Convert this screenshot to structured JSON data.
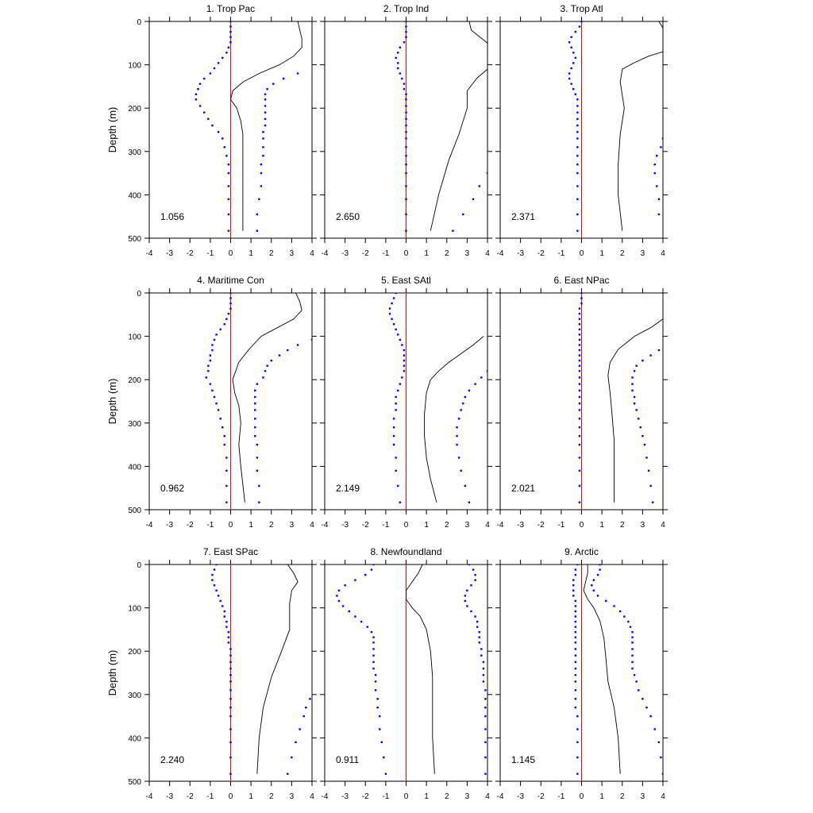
{
  "chart_data": {
    "type": "line",
    "x_range": [
      -4,
      4
    ],
    "y_range": [
      0,
      500
    ],
    "y_reversed": true,
    "ylabel": "Depth (m)",
    "x_ticks": [
      "-4",
      "-3",
      "-2",
      "-1",
      "0",
      "1",
      "2",
      "3",
      "4"
    ],
    "y_ticks": [
      "0",
      "100",
      "200",
      "300",
      "400",
      "500"
    ],
    "zero_line_color": "#ff0000",
    "solid_line_color": "#000000",
    "dot_color": "#0000ff",
    "depths": [
      0,
      12,
      24,
      36,
      48,
      60,
      72,
      84,
      96,
      108,
      120,
      132,
      144,
      156,
      168,
      180,
      195,
      210,
      225,
      240,
      255,
      270,
      290,
      310,
      330,
      350,
      380,
      410,
      445,
      483
    ],
    "panels": [
      {
        "title": "1. Trop Pac",
        "value_label": "1.056",
        "solid": [
          [
            3.3,
            0
          ],
          [
            3.4,
            20
          ],
          [
            3.5,
            40
          ],
          [
            3.5,
            60
          ],
          [
            3.1,
            80
          ],
          [
            2.4,
            100
          ],
          [
            1.4,
            120
          ],
          [
            0.6,
            140
          ],
          [
            0.1,
            160
          ],
          [
            0.0,
            180
          ],
          [
            0.3,
            200
          ],
          [
            0.5,
            230
          ],
          [
            0.6,
            260
          ],
          [
            0.6,
            300
          ],
          [
            0.6,
            350
          ],
          [
            0.6,
            400
          ],
          [
            0.6,
            483
          ]
        ],
        "dots_left": [
          0.0,
          0.0,
          0.0,
          0.0,
          0.0,
          -0.1,
          -0.2,
          -0.4,
          -0.6,
          -0.8,
          -1.0,
          -1.3,
          -1.5,
          -1.6,
          -1.7,
          -1.7,
          -1.5,
          -1.3,
          -1.1,
          -0.9,
          -0.6,
          -0.4,
          -0.3,
          -0.2,
          -0.1,
          -0.1,
          -0.1,
          -0.1,
          -0.1,
          -0.1
        ],
        "dots_right": [
          null,
          null,
          null,
          null,
          null,
          null,
          null,
          null,
          null,
          null,
          3.3,
          2.6,
          2.1,
          1.8,
          1.7,
          1.7,
          1.7,
          1.7,
          1.7,
          1.7,
          1.6,
          1.6,
          1.6,
          1.6,
          1.5,
          1.5,
          1.5,
          1.4,
          1.3,
          1.3
        ]
      },
      {
        "title": "2. Trop Ind",
        "value_label": "2.650",
        "solid": [
          [
            3.1,
            0
          ],
          [
            3.2,
            20
          ],
          [
            3.6,
            35
          ],
          [
            4.0,
            50
          ],
          [
            4.0,
            110
          ],
          [
            3.5,
            130
          ],
          [
            3.0,
            160
          ],
          [
            3.0,
            200
          ],
          [
            2.6,
            260
          ],
          [
            2.1,
            320
          ],
          [
            1.6,
            400
          ],
          [
            1.2,
            483
          ]
        ],
        "dots_left": [
          0.0,
          0.0,
          0.0,
          0.0,
          -0.1,
          -0.3,
          -0.4,
          -0.5,
          -0.4,
          -0.4,
          -0.3,
          -0.2,
          -0.1,
          -0.1,
          0.0,
          0.0,
          0.0,
          0.0,
          0.0,
          0.0,
          0.0,
          0.0,
          0.0,
          0.0,
          0.0,
          0.0,
          0.0,
          0.0,
          0.0,
          0.0
        ],
        "dots_right": [
          null,
          null,
          null,
          null,
          null,
          null,
          null,
          null,
          null,
          null,
          null,
          null,
          null,
          null,
          null,
          null,
          null,
          null,
          null,
          null,
          null,
          null,
          null,
          null,
          null,
          4.0,
          3.6,
          3.3,
          2.8,
          2.3
        ]
      },
      {
        "title": "3. Trop Atl",
        "value_label": "2.371",
        "solid": [
          [
            3.8,
            0
          ],
          [
            4.0,
            15
          ],
          [
            4.0,
            70
          ],
          [
            3.3,
            80
          ],
          [
            2.6,
            95
          ],
          [
            2.0,
            110
          ],
          [
            1.9,
            140
          ],
          [
            2.1,
            200
          ],
          [
            1.9,
            260
          ],
          [
            1.8,
            330
          ],
          [
            1.8,
            400
          ],
          [
            2.0,
            483
          ]
        ],
        "dots_left": [
          0.0,
          -0.1,
          -0.3,
          -0.5,
          -0.6,
          -0.5,
          -0.4,
          -0.3,
          -0.4,
          -0.5,
          -0.6,
          -0.6,
          -0.5,
          -0.4,
          -0.3,
          -0.2,
          -0.2,
          -0.2,
          -0.2,
          -0.2,
          -0.2,
          -0.2,
          -0.2,
          -0.2,
          -0.2,
          -0.2,
          -0.2,
          -0.2,
          -0.2,
          -0.2
        ],
        "dots_right": [
          null,
          null,
          null,
          null,
          null,
          null,
          null,
          null,
          null,
          null,
          null,
          null,
          null,
          null,
          null,
          null,
          null,
          null,
          null,
          null,
          null,
          4.0,
          3.9,
          3.7,
          3.6,
          3.6,
          3.7,
          3.8,
          3.8,
          null
        ]
      },
      {
        "title": "4. Maritime Con",
        "value_label": "0.962",
        "solid": [
          [
            3.2,
            0
          ],
          [
            3.4,
            20
          ],
          [
            3.5,
            40
          ],
          [
            3.1,
            60
          ],
          [
            2.3,
            80
          ],
          [
            1.5,
            100
          ],
          [
            0.9,
            130
          ],
          [
            0.4,
            160
          ],
          [
            0.1,
            200
          ],
          [
            0.2,
            230
          ],
          [
            0.4,
            260
          ],
          [
            0.5,
            300
          ],
          [
            0.4,
            350
          ],
          [
            0.5,
            400
          ],
          [
            0.7,
            483
          ]
        ],
        "dots_left": [
          0.0,
          0.0,
          0.0,
          0.0,
          -0.1,
          -0.2,
          -0.3,
          -0.5,
          -0.7,
          -0.8,
          -0.9,
          -0.9,
          -1.0,
          -1.0,
          -1.1,
          -1.1,
          -1.2,
          -1.0,
          -0.9,
          -0.8,
          -0.7,
          -0.6,
          -0.5,
          -0.4,
          -0.3,
          -0.3,
          -0.2,
          -0.2,
          -0.2,
          -0.2
        ],
        "dots_right": [
          null,
          null,
          null,
          null,
          null,
          null,
          null,
          null,
          null,
          4.0,
          3.3,
          2.8,
          2.4,
          2.0,
          1.8,
          1.7,
          1.6,
          1.3,
          1.2,
          1.2,
          1.2,
          1.2,
          1.2,
          1.2,
          1.2,
          1.3,
          1.3,
          1.3,
          1.4,
          1.4
        ]
      },
      {
        "title": "5. East SAtl",
        "value_label": "2.149",
        "solid": [
          [
            3.8,
            100
          ],
          [
            3.3,
            120
          ],
          [
            2.7,
            140
          ],
          [
            2.1,
            160
          ],
          [
            1.6,
            180
          ],
          [
            1.2,
            200
          ],
          [
            1.0,
            230
          ],
          [
            0.9,
            280
          ],
          [
            0.9,
            330
          ],
          [
            1.0,
            380
          ],
          [
            1.2,
            430
          ],
          [
            1.5,
            483
          ]
        ],
        "dots_left": [
          -0.5,
          -0.6,
          -0.7,
          -0.8,
          -0.8,
          -0.7,
          -0.6,
          -0.5,
          -0.4,
          -0.3,
          -0.2,
          -0.1,
          -0.1,
          -0.1,
          -0.1,
          -0.1,
          -0.2,
          -0.3,
          -0.4,
          -0.5,
          -0.5,
          -0.5,
          -0.6,
          -0.6,
          -0.6,
          -0.6,
          -0.5,
          -0.5,
          -0.4,
          -0.3
        ],
        "dots_right": [
          null,
          null,
          null,
          null,
          null,
          null,
          null,
          null,
          null,
          null,
          null,
          null,
          null,
          null,
          null,
          4.0,
          3.7,
          3.4,
          3.1,
          2.9,
          2.8,
          2.7,
          2.6,
          2.5,
          2.5,
          2.5,
          2.6,
          2.7,
          2.9,
          3.1
        ]
      },
      {
        "title": "6. East NPac",
        "value_label": "2.021",
        "solid": [
          [
            4.0,
            60
          ],
          [
            3.4,
            80
          ],
          [
            2.6,
            100
          ],
          [
            1.8,
            130
          ],
          [
            1.4,
            160
          ],
          [
            1.3,
            190
          ],
          [
            1.4,
            230
          ],
          [
            1.5,
            280
          ],
          [
            1.6,
            340
          ],
          [
            1.6,
            400
          ],
          [
            1.6,
            483
          ]
        ],
        "dots_left": [
          0.0,
          0.0,
          0.0,
          -0.1,
          -0.1,
          -0.1,
          -0.1,
          -0.1,
          -0.1,
          -0.1,
          -0.1,
          -0.1,
          -0.1,
          -0.1,
          -0.1,
          -0.1,
          -0.1,
          -0.1,
          -0.1,
          -0.1,
          -0.1,
          -0.1,
          -0.1,
          -0.1,
          -0.1,
          -0.1,
          -0.1,
          -0.1,
          -0.1,
          -0.1
        ],
        "dots_right": [
          null,
          null,
          null,
          null,
          null,
          null,
          null,
          null,
          null,
          null,
          null,
          3.8,
          3.4,
          3.0,
          2.7,
          2.6,
          2.5,
          2.5,
          2.5,
          2.6,
          2.6,
          2.7,
          2.8,
          2.9,
          3.0,
          3.1,
          3.2,
          3.3,
          3.4,
          3.5
        ]
      },
      {
        "title": "7. East SPac",
        "value_label": "2.240",
        "solid": [
          [
            2.8,
            0
          ],
          [
            3.1,
            20
          ],
          [
            3.3,
            40
          ],
          [
            3.0,
            60
          ],
          [
            2.9,
            90
          ],
          [
            2.9,
            150
          ],
          [
            2.5,
            200
          ],
          [
            2.0,
            260
          ],
          [
            1.6,
            330
          ],
          [
            1.4,
            400
          ],
          [
            1.3,
            483
          ]
        ],
        "dots_left": [
          -0.7,
          -0.8,
          -0.9,
          -0.9,
          -0.8,
          -0.7,
          -0.6,
          -0.5,
          -0.4,
          -0.3,
          -0.3,
          -0.2,
          -0.2,
          -0.1,
          -0.1,
          -0.1,
          0.0,
          0.0,
          0.0,
          0.0,
          0.0,
          0.0,
          0.0,
          0.0,
          0.0,
          0.0,
          0.0,
          0.0,
          0.0,
          0.0
        ],
        "dots_right": [
          null,
          null,
          null,
          null,
          null,
          null,
          null,
          null,
          null,
          null,
          null,
          null,
          null,
          null,
          null,
          null,
          null,
          null,
          null,
          null,
          null,
          null,
          null,
          3.9,
          3.7,
          3.6,
          3.4,
          3.2,
          3.0,
          2.8
        ]
      },
      {
        "title": "8. Newfoundland",
        "value_label": "0.911",
        "solid": [
          [
            0.8,
            0
          ],
          [
            0.6,
            20
          ],
          [
            0.3,
            40
          ],
          [
            0.0,
            60
          ],
          [
            0.0,
            80
          ],
          [
            0.3,
            100
          ],
          [
            0.7,
            120
          ],
          [
            1.0,
            150
          ],
          [
            1.2,
            200
          ],
          [
            1.3,
            260
          ],
          [
            1.3,
            330
          ],
          [
            1.3,
            400
          ],
          [
            1.4,
            483
          ]
        ],
        "dots_left": [
          -1.6,
          -1.7,
          -2.0,
          -2.5,
          -3.0,
          -3.3,
          -3.4,
          -3.3,
          -3.1,
          -2.8,
          -2.5,
          -2.2,
          -1.9,
          -1.7,
          -1.6,
          -1.6,
          -1.6,
          -1.6,
          -1.6,
          -1.6,
          -1.5,
          -1.5,
          -1.5,
          -1.4,
          -1.4,
          -1.3,
          -1.3,
          -1.2,
          -1.1,
          -1.0
        ],
        "dots_right": [
          3.1,
          3.3,
          3.4,
          3.4,
          3.2,
          3.0,
          2.9,
          2.9,
          3.0,
          3.2,
          3.4,
          3.5,
          3.5,
          3.6,
          3.6,
          3.6,
          3.7,
          3.7,
          3.8,
          3.8,
          3.8,
          3.8,
          3.9,
          3.9,
          3.9,
          3.9,
          3.9,
          3.9,
          3.9,
          3.9
        ]
      },
      {
        "title": "9. Arctic",
        "value_label": "1.145",
        "solid": [
          [
            0.3,
            0
          ],
          [
            0.3,
            20
          ],
          [
            0.2,
            40
          ],
          [
            0.1,
            60
          ],
          [
            0.3,
            80
          ],
          [
            0.6,
            100
          ],
          [
            0.9,
            130
          ],
          [
            1.1,
            170
          ],
          [
            1.2,
            220
          ],
          [
            1.3,
            270
          ],
          [
            1.6,
            330
          ],
          [
            1.8,
            400
          ],
          [
            1.9,
            483
          ]
        ],
        "dots_left": [
          -0.2,
          -0.3,
          -0.3,
          -0.4,
          -0.4,
          -0.4,
          -0.4,
          -0.3,
          -0.3,
          -0.3,
          -0.3,
          -0.3,
          -0.3,
          -0.3,
          -0.3,
          -0.3,
          -0.3,
          -0.3,
          -0.3,
          -0.3,
          -0.3,
          -0.3,
          -0.3,
          -0.3,
          -0.3,
          -0.2,
          -0.2,
          -0.2,
          -0.2,
          -0.2
        ],
        "dots_right": [
          0.9,
          0.9,
          0.8,
          0.6,
          0.5,
          0.6,
          0.8,
          1.2,
          1.6,
          1.9,
          2.1,
          2.3,
          2.4,
          2.5,
          2.5,
          2.5,
          2.5,
          2.5,
          2.5,
          2.5,
          2.6,
          2.7,
          2.8,
          3.0,
          3.2,
          3.4,
          3.6,
          3.8,
          3.9,
          4.0
        ]
      }
    ]
  }
}
